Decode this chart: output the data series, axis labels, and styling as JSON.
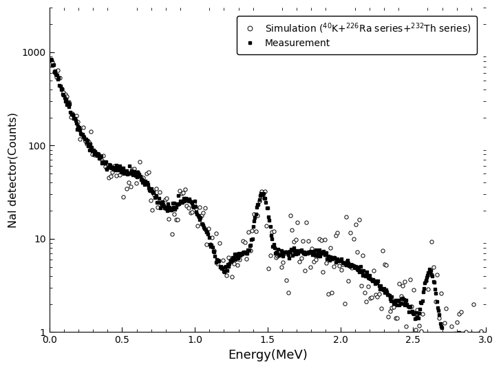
{
  "title": "",
  "xlabel": "Energy(MeV)",
  "ylabel": "NaI detector(Counts)",
  "xlim": [
    0.0,
    3.0
  ],
  "ylim": [
    1,
    3000
  ],
  "legend_sim": "Simulation ($^{40}$K+$^{226}$Ra series+$^{232}$Th series)",
  "legend_meas": "Measurement",
  "background_color": "#ffffff",
  "sim_color": "black",
  "meas_color": "black"
}
